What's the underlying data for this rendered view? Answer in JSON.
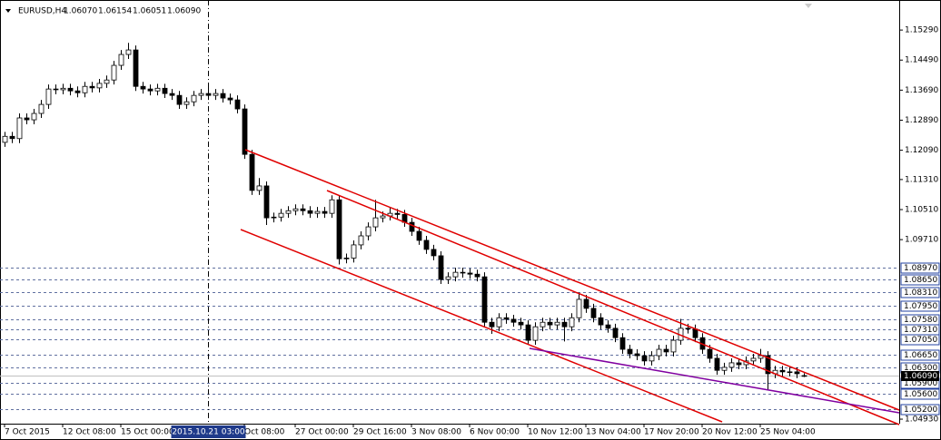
{
  "chart_data": {
    "type": "candlestick",
    "title": "EURUSD,H4",
    "last_ohlc": [
      {
        "value": 1.0607,
        "label": "1.06070"
      },
      {
        "value": 1.06154,
        "label": "1.06154"
      },
      {
        "value": 1.06051,
        "label": "1.06051"
      },
      {
        "value": 1.0609,
        "label": "1.06090"
      }
    ],
    "ylim": [
      1.0481,
      1.1609
    ],
    "yticks": [
      {
        "value": 1.1529,
        "label": "1.15290"
      },
      {
        "value": 1.1449,
        "label": "1.14490"
      },
      {
        "value": 1.1369,
        "label": "1.13690"
      },
      {
        "value": 1.1289,
        "label": "1.12890"
      },
      {
        "value": 1.1209,
        "label": "1.12090"
      },
      {
        "value": 1.1131,
        "label": "1.11310"
      },
      {
        "value": 1.1051,
        "label": "1.10510"
      },
      {
        "value": 1.0971,
        "label": "1.09710"
      },
      {
        "value": 1.0493,
        "label": "1.04930"
      }
    ],
    "levels": [
      {
        "value": 1.0897,
        "label": "1.08970"
      },
      {
        "value": 1.0865,
        "label": "1.08650"
      },
      {
        "value": 1.0831,
        "label": "1.08310"
      },
      {
        "value": 1.0795,
        "label": "1.07950"
      },
      {
        "value": 1.0758,
        "label": "1.07580"
      },
      {
        "value": 1.0731,
        "label": "1.07310"
      },
      {
        "value": 1.0705,
        "label": "1.07050"
      },
      {
        "value": 1.0665,
        "label": "1.06650"
      },
      {
        "value": 1.063,
        "label": "1.06300"
      },
      {
        "value": 1.059,
        "label": "1.05900"
      },
      {
        "value": 1.056,
        "label": "1.05600"
      },
      {
        "value": 1.052,
        "label": "1.05200"
      }
    ],
    "last_price": {
      "value": 1.0609,
      "label": "1.06090"
    },
    "xticks": [
      {
        "value": 0,
        "label": "7 Oct 2015"
      },
      {
        "value": 8,
        "label": "12 Oct 08:00"
      },
      {
        "value": 16,
        "label": "15 Oct 00:00"
      },
      {
        "value": 33,
        "label": "Oct 08:00"
      },
      {
        "value": 40,
        "label": "27 Oct 00:00"
      },
      {
        "value": 48,
        "label": "29 Oct 16:00"
      },
      {
        "value": 56,
        "label": "3 Nov 08:00"
      },
      {
        "value": 64,
        "label": "6 Nov 00:00"
      },
      {
        "value": 72,
        "label": "10 Nov 12:00"
      },
      {
        "value": 80,
        "label": "13 Nov 04:00"
      },
      {
        "value": 88,
        "label": "17 Nov 20:00"
      },
      {
        "value": 96,
        "label": "20 Nov 12:00"
      },
      {
        "value": 104,
        "label": "25 Nov 04:00"
      }
    ],
    "crosshair": {
      "value": 28,
      "label": "2015.10.21 03:00"
    },
    "candles": [
      [
        1.123,
        1.1258,
        1.1218,
        1.1246
      ],
      [
        1.1246,
        1.1258,
        1.1228,
        1.124
      ],
      [
        1.124,
        1.1307,
        1.1228,
        1.1295
      ],
      [
        1.1295,
        1.1307,
        1.1278,
        1.129
      ],
      [
        1.129,
        1.1319,
        1.1278,
        1.1307
      ],
      [
        1.1307,
        1.1343,
        1.1295,
        1.1331
      ],
      [
        1.1331,
        1.1384,
        1.1319,
        1.1372
      ],
      [
        1.1372,
        1.1384,
        1.1358,
        1.137
      ],
      [
        1.137,
        1.1386,
        1.1358,
        1.1374
      ],
      [
        1.1374,
        1.1386,
        1.1355,
        1.1367
      ],
      [
        1.1367,
        1.1379,
        1.135,
        1.1362
      ],
      [
        1.1362,
        1.1391,
        1.135,
        1.1379
      ],
      [
        1.1379,
        1.1391,
        1.1363,
        1.1375
      ],
      [
        1.1375,
        1.1399,
        1.1363,
        1.1387
      ],
      [
        1.1387,
        1.1408,
        1.1375,
        1.1396
      ],
      [
        1.1396,
        1.1447,
        1.1384,
        1.1435
      ],
      [
        1.1435,
        1.1476,
        1.1423,
        1.1464
      ],
      [
        1.1464,
        1.1495,
        1.1452,
        1.1476
      ],
      [
        1.1476,
        1.1488,
        1.1367,
        1.1379
      ],
      [
        1.1379,
        1.1391,
        1.136,
        1.1372
      ],
      [
        1.1372,
        1.1384,
        1.1355,
        1.1367
      ],
      [
        1.1367,
        1.1386,
        1.1355,
        1.1374
      ],
      [
        1.1374,
        1.1386,
        1.1348,
        1.136
      ],
      [
        1.136,
        1.1372,
        1.1343,
        1.1355
      ],
      [
        1.1355,
        1.1367,
        1.1319,
        1.1331
      ],
      [
        1.1331,
        1.135,
        1.1319,
        1.1338
      ],
      [
        1.1338,
        1.1367,
        1.1326,
        1.1355
      ],
      [
        1.1355,
        1.1372,
        1.1343,
        1.136
      ],
      [
        1.136,
        1.138,
        1.1343,
        1.1355
      ],
      [
        1.1355,
        1.1372,
        1.1343,
        1.136
      ],
      [
        1.136,
        1.1372,
        1.1336,
        1.1348
      ],
      [
        1.1348,
        1.136,
        1.1331,
        1.1343
      ],
      [
        1.1343,
        1.1355,
        1.1307,
        1.1319
      ],
      [
        1.1319,
        1.1331,
        1.1186,
        1.1198
      ],
      [
        1.1198,
        1.121,
        1.109,
        1.1102
      ],
      [
        1.1102,
        1.1135,
        1.109,
        1.1114
      ],
      [
        1.1114,
        1.1126,
        1.101,
        1.1029
      ],
      [
        1.1029,
        1.1043,
        1.1017,
        1.1031
      ],
      [
        1.1031,
        1.1053,
        1.1019,
        1.1041
      ],
      [
        1.1041,
        1.106,
        1.1029,
        1.1048
      ],
      [
        1.1048,
        1.1065,
        1.1036,
        1.1053
      ],
      [
        1.1053,
        1.1065,
        1.1036,
        1.1048
      ],
      [
        1.1048,
        1.106,
        1.1029,
        1.1041
      ],
      [
        1.1041,
        1.1058,
        1.1029,
        1.1046
      ],
      [
        1.1046,
        1.1058,
        1.1029,
        1.1041
      ],
      [
        1.1041,
        1.1089,
        1.1029,
        1.1077
      ],
      [
        1.1077,
        1.1089,
        1.0905,
        1.092
      ],
      [
        1.092,
        1.0934,
        1.0908,
        1.0922
      ],
      [
        1.0922,
        1.0969,
        1.091,
        1.0957
      ],
      [
        1.0957,
        1.0993,
        1.0945,
        1.0981
      ],
      [
        1.0981,
        1.1017,
        1.0969,
        1.1005
      ],
      [
        1.1005,
        1.1077,
        1.0993,
        1.1029
      ],
      [
        1.1029,
        1.1046,
        1.1017,
        1.1034
      ],
      [
        1.1034,
        1.1056,
        1.1022,
        1.1041
      ],
      [
        1.1041,
        1.1053,
        1.1026,
        1.1038
      ],
      [
        1.1038,
        1.105,
        1.1005,
        1.1017
      ],
      [
        1.1017,
        1.1029,
        1.0981,
        1.0993
      ],
      [
        1.0993,
        1.1005,
        1.0957,
        1.0969
      ],
      [
        1.0969,
        1.0981,
        1.0933,
        1.0945
      ],
      [
        1.0945,
        1.0957,
        1.0916,
        1.0928
      ],
      [
        1.0928,
        1.094,
        1.0853,
        1.0865
      ],
      [
        1.0865,
        1.0884,
        1.0853,
        1.0872
      ],
      [
        1.0872,
        1.0896,
        1.086,
        1.0884
      ],
      [
        1.0884,
        1.0896,
        1.087,
        1.0882
      ],
      [
        1.0882,
        1.0894,
        1.0867,
        1.0879
      ],
      [
        1.0879,
        1.0891,
        1.086,
        1.0872
      ],
      [
        1.0872,
        1.0884,
        1.0739,
        1.0751
      ],
      [
        1.0751,
        1.0763,
        1.072,
        1.0739
      ],
      [
        1.0739,
        1.0775,
        1.0727,
        1.0763
      ],
      [
        1.0763,
        1.0775,
        1.0747,
        1.0759
      ],
      [
        1.0759,
        1.0771,
        1.0739,
        1.0751
      ],
      [
        1.0751,
        1.0763,
        1.0732,
        1.0744
      ],
      [
        1.0744,
        1.0756,
        1.0691,
        1.0703
      ],
      [
        1.0703,
        1.0751,
        1.0691,
        1.0739
      ],
      [
        1.0739,
        1.0763,
        1.0727,
        1.0751
      ],
      [
        1.0751,
        1.0763,
        1.0732,
        1.0744
      ],
      [
        1.0744,
        1.0763,
        1.0732,
        1.0751
      ],
      [
        1.0751,
        1.0763,
        1.07,
        1.0739
      ],
      [
        1.0739,
        1.0775,
        1.0727,
        1.0763
      ],
      [
        1.0763,
        1.083,
        1.0751,
        1.0812
      ],
      [
        1.0812,
        1.0824,
        1.0776,
        1.0788
      ],
      [
        1.0788,
        1.08,
        1.0751,
        1.0763
      ],
      [
        1.0763,
        1.0775,
        1.0732,
        1.0744
      ],
      [
        1.0744,
        1.0756,
        1.0723,
        1.0735
      ],
      [
        1.0735,
        1.0747,
        1.0698,
        1.071
      ],
      [
        1.071,
        1.0722,
        1.0667,
        1.0679
      ],
      [
        1.0679,
        1.0691,
        1.0655,
        1.0667
      ],
      [
        1.0667,
        1.0679,
        1.065,
        1.0662
      ],
      [
        1.0662,
        1.0674,
        1.0636,
        1.0648
      ],
      [
        1.0648,
        1.0674,
        1.0636,
        1.0662
      ],
      [
        1.0662,
        1.0691,
        1.065,
        1.0679
      ],
      [
        1.0679,
        1.0691,
        1.066,
        1.0672
      ],
      [
        1.0672,
        1.0715,
        1.066,
        1.0703
      ],
      [
        1.0703,
        1.076,
        1.0691,
        1.0735
      ],
      [
        1.0735,
        1.0747,
        1.0721,
        1.0733
      ],
      [
        1.0733,
        1.0745,
        1.0698,
        1.071
      ],
      [
        1.071,
        1.0722,
        1.0667,
        1.0679
      ],
      [
        1.0679,
        1.0691,
        1.0643,
        1.0655
      ],
      [
        1.0655,
        1.0667,
        1.0611,
        1.0623
      ],
      [
        1.0623,
        1.0643,
        1.0611,
        1.0631
      ],
      [
        1.0631,
        1.0655,
        1.0619,
        1.0643
      ],
      [
        1.0643,
        1.0655,
        1.0626,
        1.0638
      ],
      [
        1.0638,
        1.066,
        1.0626,
        1.0648
      ],
      [
        1.0648,
        1.0667,
        1.0636,
        1.0655
      ],
      [
        1.0655,
        1.068,
        1.0643,
        1.0662
      ],
      [
        1.0662,
        1.0674,
        1.057,
        1.0614
      ],
      [
        1.0614,
        1.0635,
        1.0602,
        1.0623
      ],
      [
        1.0623,
        1.0635,
        1.0607,
        1.0619
      ],
      [
        1.0619,
        1.0631,
        1.0607,
        1.0619
      ],
      [
        1.0619,
        1.0631,
        1.0602,
        1.0614
      ],
      [
        1.0607,
        1.06154,
        1.06051,
        1.0609
      ]
    ]
  }
}
